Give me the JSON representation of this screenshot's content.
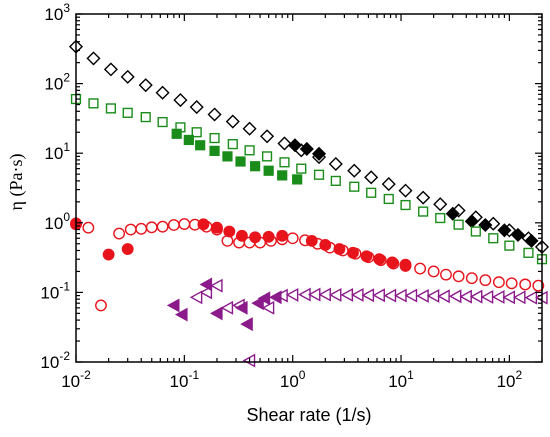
{
  "chart_data": {
    "type": "scatter",
    "xlabel": "Shear rate (1/s)",
    "ylabel": "η (Pa·s)",
    "x_scale": "log",
    "y_scale": "log",
    "xlim": [
      0.01,
      200
    ],
    "ylim": [
      0.01,
      1000
    ],
    "x_ticks": [
      {
        "value": 0.01,
        "base": "10",
        "exp": "-2"
      },
      {
        "value": 0.1,
        "base": "10",
        "exp": "-1"
      },
      {
        "value": 1,
        "base": "10",
        "exp": "0"
      },
      {
        "value": 10,
        "base": "10",
        "exp": "1"
      },
      {
        "value": 100,
        "base": "10",
        "exp": "2"
      }
    ],
    "y_ticks": [
      {
        "value": 0.01,
        "base": "10",
        "exp": "-2"
      },
      {
        "value": 0.1,
        "base": "10",
        "exp": "-1"
      },
      {
        "value": 1,
        "base": "10",
        "exp": "0"
      },
      {
        "value": 10,
        "base": "10",
        "exp": "1"
      },
      {
        "value": 100,
        "base": "10",
        "exp": "2"
      },
      {
        "value": 1000,
        "base": "10",
        "exp": "3"
      }
    ],
    "grid": false,
    "legend": "none",
    "series": [
      {
        "marker": "diamond-open",
        "color": "#000000",
        "x": [
          0.01,
          0.0145,
          0.021,
          0.03,
          0.044,
          0.063,
          0.092,
          0.13,
          0.19,
          0.28,
          0.4,
          0.58,
          0.84,
          1.2,
          1.75,
          2.5,
          3.7,
          5.3,
          7.7,
          11,
          16,
          23,
          34,
          49,
          71,
          100,
          150,
          200
        ],
        "y": [
          340,
          230,
          160,
          125,
          95,
          74,
          58,
          46,
          36,
          28.5,
          22.5,
          17.5,
          13.8,
          11,
          8.8,
          7,
          5.6,
          4.5,
          3.6,
          2.9,
          2.3,
          1.85,
          1.5,
          1.2,
          0.97,
          0.78,
          0.6,
          0.45
        ]
      },
      {
        "marker": "diamond-filled",
        "color": "#000000",
        "x": [
          1.05,
          1.35,
          1.75,
          30,
          45,
          60,
          90,
          120,
          160
        ],
        "y": [
          13,
          11.5,
          9.8,
          1.35,
          1.05,
          0.93,
          0.78,
          0.67,
          0.55
        ]
      },
      {
        "marker": "square-open",
        "color": "#1a8c1a",
        "x": [
          0.01,
          0.0145,
          0.021,
          0.03,
          0.044,
          0.063,
          0.092,
          0.13,
          0.19,
          0.28,
          0.4,
          0.58,
          0.84,
          1.2,
          1.75,
          2.5,
          3.7,
          5.3,
          7.7,
          11,
          16,
          23,
          34,
          49,
          71,
          100,
          150,
          200
        ],
        "y": [
          60,
          52,
          44,
          38,
          33,
          28,
          23.5,
          20,
          16.5,
          13.5,
          11,
          9,
          7.4,
          6,
          4.9,
          4,
          3.3,
          2.7,
          2.2,
          1.8,
          1.45,
          1.17,
          0.94,
          0.75,
          0.6,
          0.47,
          0.37,
          0.3
        ]
      },
      {
        "marker": "square-filled",
        "color": "#1a8c1a",
        "x": [
          0.085,
          0.11,
          0.14,
          0.19,
          0.25,
          0.33,
          0.45,
          0.6,
          0.8,
          1.1
        ],
        "y": [
          19,
          15.5,
          13,
          10.8,
          9,
          7.6,
          6.5,
          5.6,
          4.8,
          4.2
        ]
      },
      {
        "marker": "circle-open",
        "color": "#e8141c",
        "x": [
          0.01,
          0.013,
          0.017,
          0.025,
          0.032,
          0.04,
          0.05,
          0.063,
          0.08,
          0.1,
          0.125,
          0.16,
          0.2,
          0.25,
          0.32,
          0.4,
          0.5,
          0.63,
          0.8,
          1,
          1.3,
          1.7,
          2.2,
          2.9,
          3.8,
          5,
          6.5,
          8.5,
          11,
          15,
          20,
          26,
          34,
          45,
          60,
          80,
          105,
          140,
          185
        ],
        "y": [
          0.95,
          0.85,
          0.065,
          0.7,
          0.8,
          0.82,
          0.86,
          0.88,
          0.93,
          0.96,
          0.94,
          0.88,
          0.8,
          0.55,
          0.52,
          0.52,
          0.52,
          0.55,
          0.58,
          0.6,
          0.56,
          0.5,
          0.44,
          0.4,
          0.36,
          0.32,
          0.29,
          0.26,
          0.24,
          0.22,
          0.2,
          0.18,
          0.17,
          0.16,
          0.15,
          0.14,
          0.135,
          0.13,
          0.125
        ]
      },
      {
        "marker": "circle-filled",
        "color": "#e8141c",
        "x": [
          0.01,
          0.02,
          0.03,
          0.15,
          0.2,
          0.26,
          0.34,
          0.45,
          0.6,
          0.8,
          1.5,
          2,
          2.7,
          3.6,
          4.8,
          6.3,
          8.3,
          11
        ],
        "y": [
          0.98,
          0.35,
          0.42,
          0.95,
          0.85,
          0.75,
          0.65,
          0.62,
          0.63,
          0.65,
          0.55,
          0.48,
          0.42,
          0.37,
          0.33,
          0.3,
          0.27,
          0.25
        ]
      },
      {
        "marker": "triangle-left-open",
        "color": "#8b1a8b",
        "x": [
          0.13,
          0.16,
          0.2,
          0.25,
          0.32,
          0.4,
          0.6,
          0.8,
          1,
          1.3,
          1.6,
          2,
          2.5,
          3.2,
          4,
          5,
          6.3,
          8,
          10,
          12.5,
          16,
          20,
          25,
          32,
          40,
          50,
          63,
          80,
          100,
          125,
          160,
          200
        ],
        "y": [
          0.085,
          0.1,
          0.125,
          0.06,
          0.065,
          0.0105,
          0.06,
          0.09,
          0.092,
          0.093,
          0.093,
          0.093,
          0.092,
          0.092,
          0.092,
          0.091,
          0.091,
          0.09,
          0.09,
          0.09,
          0.089,
          0.089,
          0.088,
          0.088,
          0.087,
          0.087,
          0.086,
          0.086,
          0.085,
          0.085,
          0.084,
          0.084
        ]
      },
      {
        "marker": "triangle-left-filled",
        "color": "#8b1a8b",
        "x": [
          0.08,
          0.095,
          0.16,
          0.2,
          0.34,
          0.38,
          0.48,
          0.55,
          0.7
        ],
        "y": [
          0.065,
          0.048,
          0.13,
          0.05,
          0.06,
          0.035,
          0.07,
          0.082,
          0.085
        ]
      }
    ]
  }
}
